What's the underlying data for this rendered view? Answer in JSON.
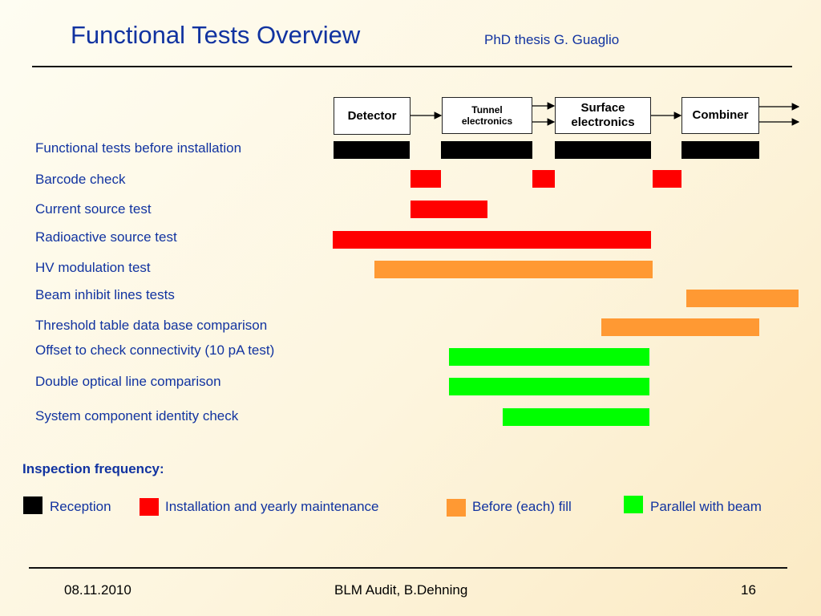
{
  "header": {
    "title": "Functional Tests Overview",
    "subtitle": "PhD thesis G. Guaglio"
  },
  "stages": [
    {
      "name": "detector",
      "label": "Detector"
    },
    {
      "name": "tunnel-electronics",
      "label": "Tunnel\nelectronics"
    },
    {
      "name": "surface-electronics",
      "label": "Surface\nelectronics"
    },
    {
      "name": "combiner",
      "label": "Combiner"
    }
  ],
  "colors": {
    "black": "#000000",
    "red": "#ff0000",
    "orange": "#ff9933",
    "green": "#00ff00"
  },
  "tests": [
    {
      "label": "Functional tests before installation",
      "frequency": "black"
    },
    {
      "label": "Barcode check",
      "frequency": "red"
    },
    {
      "label": "Current source test",
      "frequency": "red"
    },
    {
      "label": "Radioactive source test",
      "frequency": "red"
    },
    {
      "label": "HV modulation test",
      "frequency": "orange"
    },
    {
      "label": "Beam inhibit lines tests",
      "frequency": "orange"
    },
    {
      "label": "Threshold table data base comparison",
      "frequency": "orange"
    },
    {
      "label": "Offset to check connectivity (10 pA test)",
      "frequency": "green"
    },
    {
      "label": "Double optical line comparison",
      "frequency": "green"
    },
    {
      "label": "System component identity check",
      "frequency": "green"
    }
  ],
  "legend": {
    "title": "Inspection frequency:",
    "items": [
      {
        "key": "black",
        "label": "Reception"
      },
      {
        "key": "red",
        "label": "Installation and yearly maintenance"
      },
      {
        "key": "orange",
        "label": "Before (each) fill"
      },
      {
        "key": "green",
        "label": "Parallel with beam"
      }
    ]
  },
  "footer": {
    "date": "08.11.2010",
    "center": "BLM Audit, B.Dehning",
    "page": "16"
  }
}
